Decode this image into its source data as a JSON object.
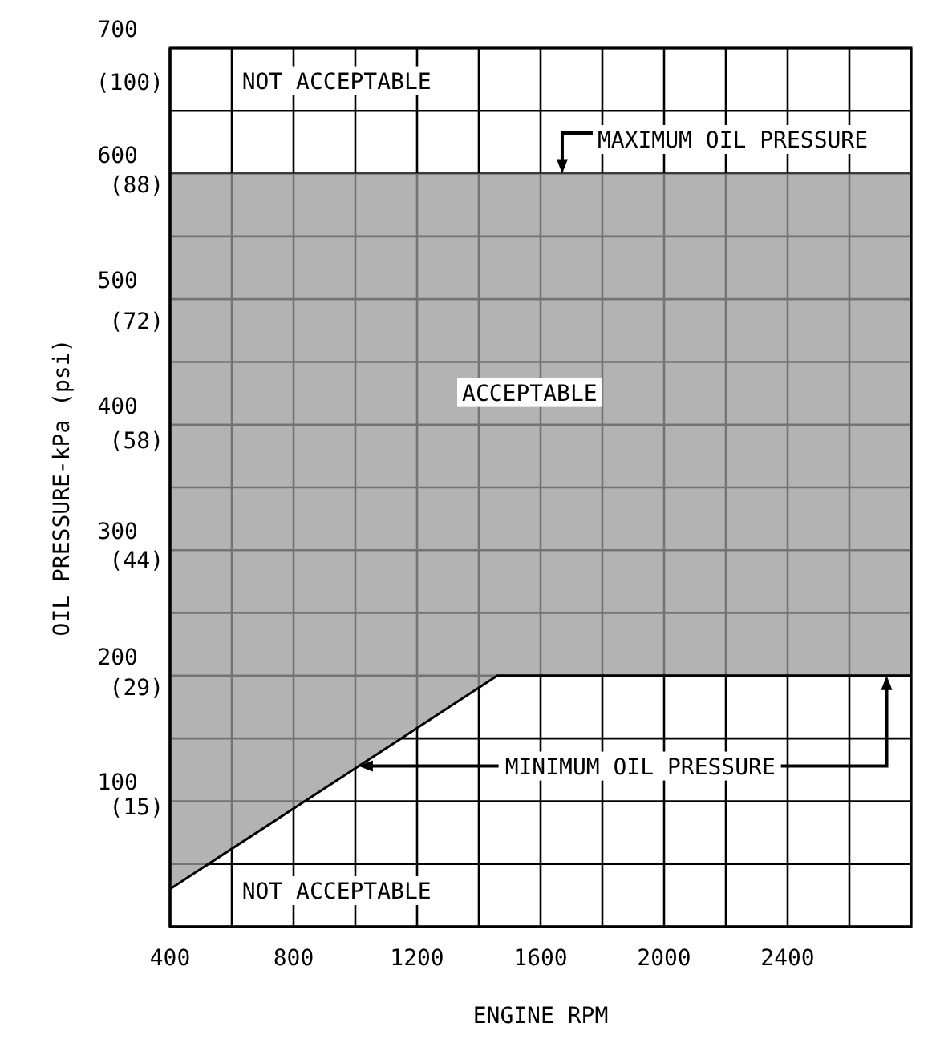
{
  "chart_data": {
    "type": "line",
    "xlabel": "ENGINE RPM",
    "ylabel": "OIL PRESSURE-kPa (psi)",
    "x": [
      400,
      1460,
      2800
    ],
    "series": [
      {
        "color": "#000000",
        "values": [
          30,
          200,
          200
        ],
        "lower": [
          30,
          200,
          200
        ],
        "upper": [
          600,
          600,
          600
        ]
      }
    ],
    "xlim": [
      400,
      2800
    ],
    "xticks": [
      400,
      {
        "value": 600,
        "label": null
      },
      800,
      {
        "value": 1000,
        "label": null
      },
      1200,
      {
        "value": 1400,
        "label": null
      },
      1600,
      {
        "value": 1800,
        "label": null
      },
      2000,
      {
        "value": 2200,
        "label": null
      },
      2400,
      {
        "value": 2600,
        "label": null
      },
      {
        "value": 2800,
        "label": null
      }
    ],
    "ylim": [
      0,
      700
    ],
    "yticks": [
      {
        "value": 0,
        "label": null
      },
      {
        "value": 50,
        "label": null
      },
      100,
      {
        "value": 150,
        "label": null
      },
      200,
      {
        "value": 250,
        "label": null
      },
      300,
      {
        "value": 350,
        "label": null
      },
      400,
      {
        "value": 450,
        "label": null
      },
      500,
      {
        "value": 550,
        "label": null
      },
      600,
      {
        "value": 650,
        "label": null
      },
      700
    ],
    "y2lim": [
      0,
      103
    ],
    "y2ticks": [
      {
        "value": 15,
        "label": "(15)"
      },
      {
        "value": 29,
        "label": "(29)"
      },
      {
        "value": 44,
        "label": "(44)"
      },
      {
        "value": 58,
        "label": "(58)"
      },
      {
        "value": 72,
        "label": "(72)"
      },
      {
        "value": 88,
        "label": "(88)"
      },
      {
        "value": 100,
        "label": "(100)"
      }
    ],
    "grid": true,
    "annotations": [
      "NOT ACCEPTABLE",
      {
        "text": "MAXIMUM OIL PRESSURE",
        "x": 1670,
        "y": 600
      },
      "ACCEPTABLE",
      {
        "text": "MINIMUM OIL PRESSURE",
        "x": 1010,
        "y": 128
      },
      "NOT ACCEPTABLE"
    ]
  }
}
